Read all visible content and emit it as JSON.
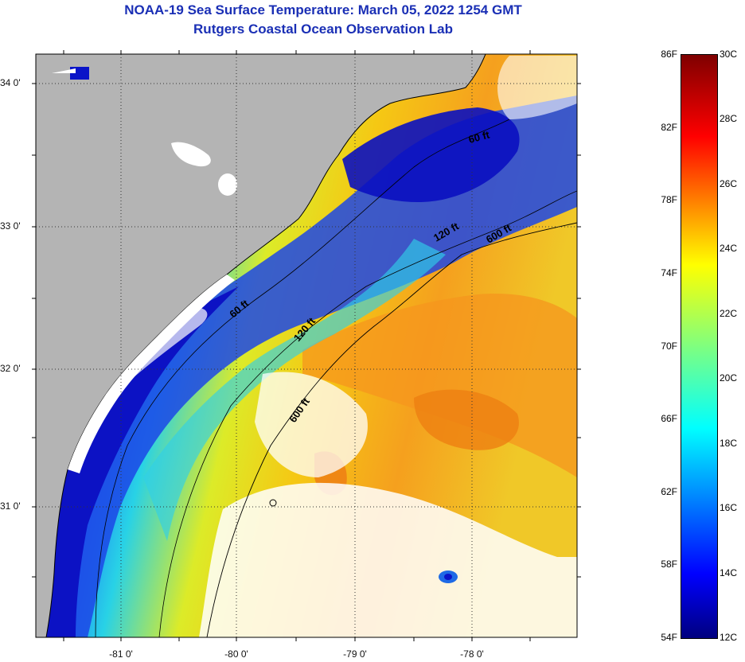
{
  "title": {
    "line1": "NOAA-19 Sea Surface Temperature:  March 05, 2022 1254 GMT",
    "line2": "Rutgers Coastal Ocean Observation Lab"
  },
  "map": {
    "lat_labels": [
      "34 0'",
      "33 0'",
      "32 0'",
      "31 0'"
    ],
    "lon_labels": [
      "-81 0'",
      "-80 0'",
      "-79 0'",
      "-78 0'"
    ],
    "contours": [
      "60 ft",
      "120 ft",
      "600 ft",
      "60 ft",
      "120 ft",
      "600 ft"
    ],
    "colors": {
      "land": "#b4b4b4",
      "cloud": "#ffffff",
      "cold": "#1010c8",
      "warm": "#f08c10"
    }
  },
  "colorbar": {
    "fahrenheit": [
      "86F",
      "82F",
      "78F",
      "74F",
      "70F",
      "66F",
      "62F",
      "58F",
      "54F"
    ],
    "celsius": [
      "30C",
      "28C",
      "26C",
      "24C",
      "22C",
      "20C",
      "18C",
      "16C",
      "14C",
      "12C"
    ],
    "range_f": [
      54,
      86
    ],
    "range_c": [
      12,
      30
    ]
  }
}
